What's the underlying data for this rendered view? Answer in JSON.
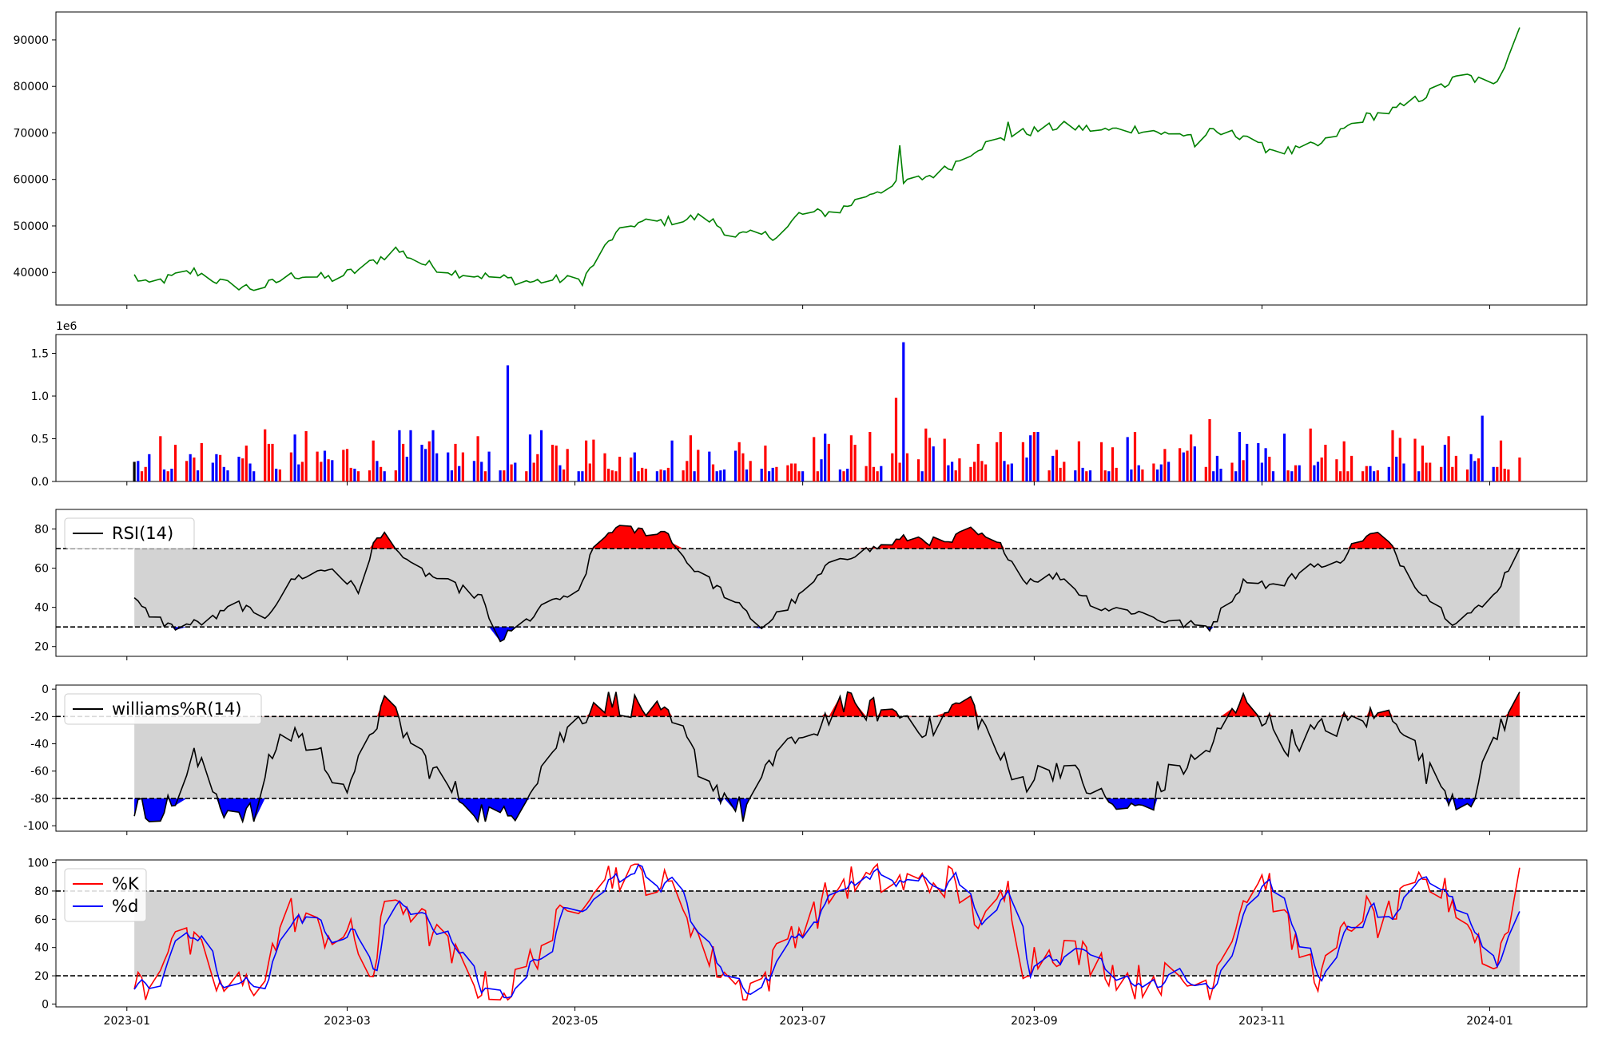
{
  "chart_data": [
    {
      "type": "line",
      "id": "price",
      "ylim": [
        33000,
        96000
      ],
      "yticks": [
        40000,
        50000,
        60000,
        70000,
        80000,
        90000
      ],
      "series": [
        {
          "color": "#008000",
          "x": [],
          "y": []
        }
      ]
    },
    {
      "type": "bar",
      "id": "volume",
      "scale_label": "1e6",
      "ylim": [
        0,
        1.72
      ],
      "yticks": [
        0.0,
        0.5,
        1.0,
        1.5
      ],
      "ytick_labels": [
        "0.0",
        "0.5",
        "1.0",
        "1.5"
      ],
      "colors": {
        "up": "#ff0000",
        "down": "#0000ff",
        "flat": "#000000"
      },
      "values": [],
      "direction": []
    },
    {
      "type": "line",
      "id": "rsi",
      "ylim": [
        15,
        90
      ],
      "yticks": [
        20,
        40,
        60,
        80
      ],
      "band": [
        30,
        70
      ],
      "legend": {
        "label": "RSI(14)",
        "position": "top-left"
      },
      "series": [
        {
          "name": "RSI(14)",
          "color": "#000000",
          "x": [],
          "y": []
        }
      ]
    },
    {
      "type": "line",
      "id": "williams",
      "ylim": [
        -104,
        3
      ],
      "yticks": [
        0,
        -20,
        -40,
        -60,
        -80,
        -100
      ],
      "band": [
        -80,
        -20
      ],
      "legend": {
        "label": "williams%R(14)",
        "position": "top-left"
      },
      "series": [
        {
          "name": "williams%R(14)",
          "color": "#000000",
          "x": [],
          "y": []
        }
      ]
    },
    {
      "type": "line",
      "id": "stochastic",
      "ylim": [
        -2,
        102
      ],
      "yticks": [
        0,
        20,
        40,
        60,
        80,
        100
      ],
      "band": [
        20,
        80
      ],
      "legend": {
        "labels": [
          "%K",
          "%d"
        ],
        "position": "top-left"
      },
      "series": [
        {
          "name": "%K",
          "color": "#ff0000",
          "x": [],
          "y": []
        },
        {
          "name": "%d",
          "color": "#0000ff",
          "x": [],
          "y": []
        }
      ],
      "x_ticks": [
        "2023-01",
        "2023-03",
        "2023-05",
        "2023-07",
        "2023-09",
        "2023-11",
        "2024-01"
      ],
      "x_tick_dates": [
        "2023-01-01",
        "2023-03-01",
        "2023-05-01",
        "2023-07-01",
        "2023-09-01",
        "2023-11-01",
        "2024-01-01"
      ],
      "xlim": [
        "2022-12-13",
        "2024-01-27"
      ]
    }
  ]
}
